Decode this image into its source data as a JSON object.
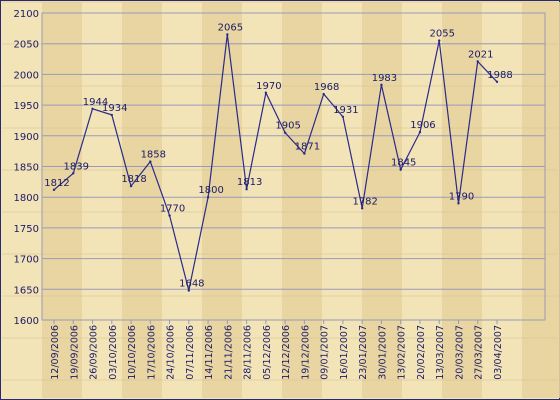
{
  "chart_data": {
    "type": "line",
    "title": "",
    "xlabel": "",
    "ylabel": "",
    "ylim": [
      1600,
      2100
    ],
    "yticks": [
      1600,
      1650,
      1700,
      1750,
      1800,
      1850,
      1900,
      1950,
      2000,
      2050,
      2100
    ],
    "categories": [
      "12/09/2006",
      "19/09/2006",
      "26/09/2006",
      "03/10/2006",
      "10/10/2006",
      "17/10/2006",
      "24/10/2006",
      "07/11/2006",
      "14/11/2006",
      "21/11/2006",
      "28/11/2006",
      "05/12/2006",
      "12/12/2006",
      "19/12/2006",
      "09/01/2007",
      "16/01/2007",
      "23/01/2007",
      "30/01/2007",
      "13/02/2007",
      "20/02/2007",
      "13/03/2007",
      "20/03/2007",
      "27/03/2007",
      "03/04/2007"
    ],
    "series": [
      {
        "values": [
          1812,
          1839,
          1944,
          1934,
          1818,
          1858,
          1770,
          1648,
          1800,
          2065,
          1813,
          1970,
          1905,
          1871,
          1968,
          1931,
          1782,
          1983,
          1845,
          1906,
          2055,
          1790,
          2021,
          1988
        ]
      }
    ],
    "colors": {
      "line": "#2a2a8a",
      "text": "#1a1a66",
      "grid": "#9a9ab8",
      "background": "#f3e3b8",
      "wood_dark": "#e7d3a0"
    },
    "grid": true,
    "legend": "none"
  }
}
